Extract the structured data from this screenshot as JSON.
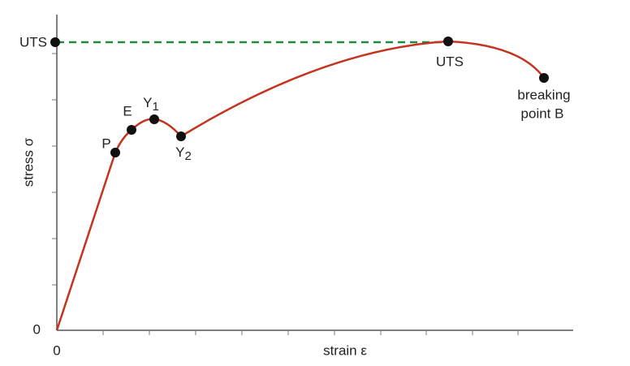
{
  "axes": {
    "y_label": "stress σ",
    "x_label": "strain ε",
    "y_origin": "0",
    "x_origin": "0",
    "y_level": "UTS"
  },
  "points": [
    {
      "label": "P"
    },
    {
      "label": "E"
    },
    {
      "label": "Y",
      "subscript": "1"
    },
    {
      "label": "Y",
      "subscript": "2"
    },
    {
      "label": "UTS"
    },
    {
      "label": "breaking",
      "label_line2": "point B"
    }
  ]
}
